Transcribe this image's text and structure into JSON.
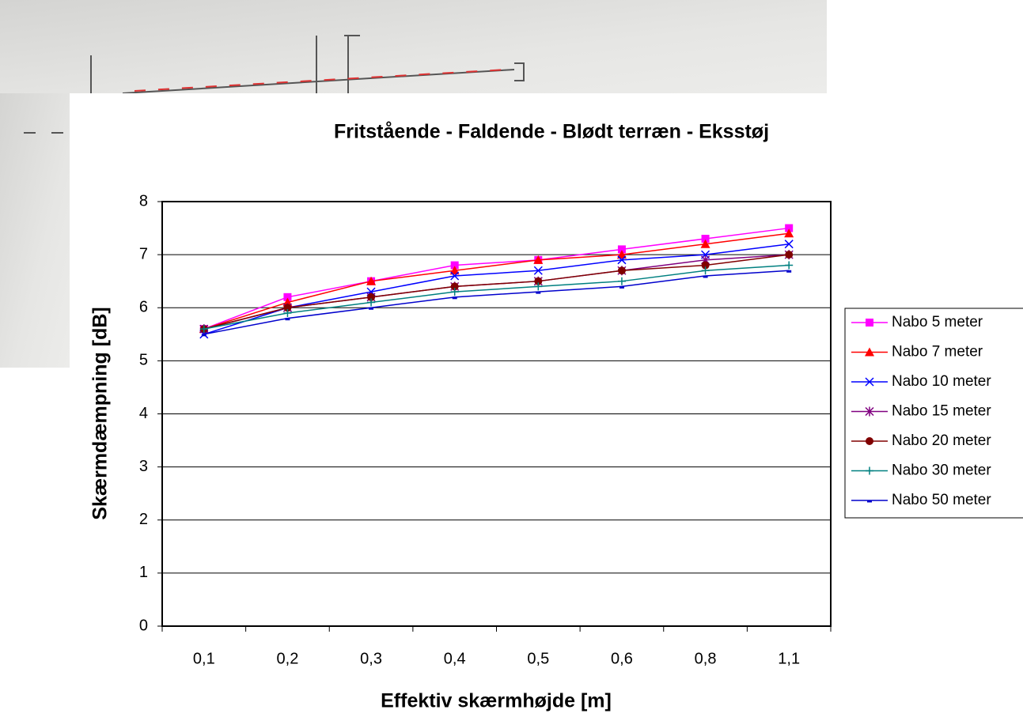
{
  "chart_data": {
    "type": "line",
    "title": "Fritstående - Faldende - Blødt terræn - Eksstøj",
    "x_label": "Effektiv skærmhøjde [m]",
    "y_label": "Skærmdæmpning [dB]",
    "categories": [
      "0,1",
      "0,2",
      "0,3",
      "0,4",
      "0,5",
      "0,6",
      "0,8",
      "1,1"
    ],
    "series": [
      {
        "name": "Nabo 5 meter",
        "color": "#ff00ff",
        "marker": "square",
        "values": [
          5.6,
          6.2,
          6.5,
          6.8,
          6.9,
          7.1,
          7.3,
          7.5
        ]
      },
      {
        "name": "Nabo 7 meter",
        "color": "#ff0000",
        "marker": "triangle",
        "values": [
          5.6,
          6.1,
          6.5,
          6.7,
          6.9,
          7.0,
          7.2,
          7.4
        ]
      },
      {
        "name": "Nabo 10 meter",
        "color": "#0000ff",
        "marker": "x",
        "values": [
          5.5,
          6.0,
          6.3,
          6.6,
          6.7,
          6.9,
          7.0,
          7.2
        ]
      },
      {
        "name": "Nabo 15 meter",
        "color": "#800080",
        "marker": "star",
        "values": [
          5.6,
          6.0,
          6.2,
          6.4,
          6.5,
          6.7,
          6.9,
          7.0
        ]
      },
      {
        "name": "Nabo 20 meter",
        "color": "#800000",
        "marker": "circle",
        "values": [
          5.6,
          6.0,
          6.2,
          6.4,
          6.5,
          6.7,
          6.8,
          7.0
        ]
      },
      {
        "name": "Nabo 30 meter",
        "color": "#008080",
        "marker": "plus",
        "values": [
          5.6,
          5.9,
          6.1,
          6.3,
          6.4,
          6.5,
          6.7,
          6.8
        ]
      },
      {
        "name": "Nabo 50 meter",
        "color": "#0000cc",
        "marker": "dash",
        "values": [
          5.5,
          5.8,
          6.0,
          6.2,
          6.3,
          6.4,
          6.6,
          6.7
        ]
      }
    ],
    "ylim": [
      0,
      8
    ],
    "yticks": [
      0,
      1,
      2,
      3,
      4,
      5,
      6,
      7,
      8
    ],
    "grid": true,
    "legend": "right"
  }
}
